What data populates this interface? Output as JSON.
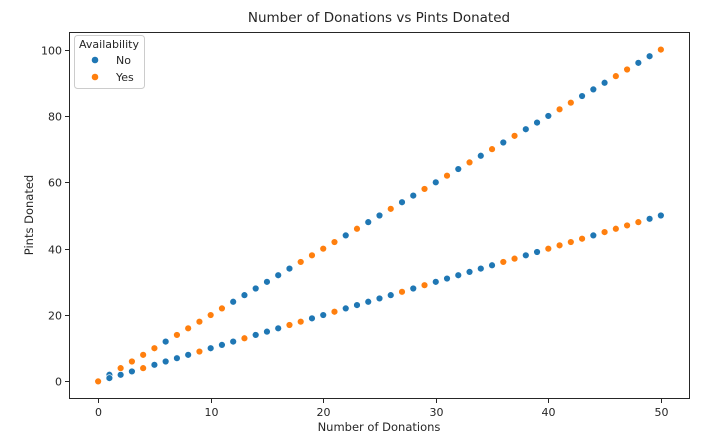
{
  "chart_data": {
    "type": "scatter",
    "title": "Number of Donations vs Pints Donated",
    "xlabel": "Number of Donations",
    "ylabel": "Pints Donated",
    "xlim": [
      -2.5,
      52.5
    ],
    "ylim": [
      -5,
      105
    ],
    "xticks": [
      0,
      10,
      20,
      30,
      40,
      50
    ],
    "yticks": [
      0,
      20,
      40,
      60,
      80,
      100
    ],
    "grid": false,
    "legend": {
      "title": "Availability",
      "position": "top-left"
    },
    "series": [
      {
        "name": "No",
        "color": "#1f77b4",
        "points": [
          [
            1,
            2
          ],
          [
            1,
            1
          ],
          [
            2,
            2
          ],
          [
            3,
            3
          ],
          [
            5,
            5
          ],
          [
            6,
            6
          ],
          [
            6,
            12
          ],
          [
            7,
            7
          ],
          [
            8,
            8
          ],
          [
            10,
            10
          ],
          [
            11,
            11
          ],
          [
            12,
            12
          ],
          [
            12,
            24
          ],
          [
            13,
            26
          ],
          [
            14,
            28
          ],
          [
            14,
            14
          ],
          [
            15,
            30
          ],
          [
            15,
            15
          ],
          [
            16,
            32
          ],
          [
            16,
            16
          ],
          [
            17,
            34
          ],
          [
            19,
            19
          ],
          [
            20,
            20
          ],
          [
            22,
            44
          ],
          [
            22,
            22
          ],
          [
            23,
            23
          ],
          [
            24,
            48
          ],
          [
            24,
            24
          ],
          [
            25,
            50
          ],
          [
            25,
            25
          ],
          [
            26,
            26
          ],
          [
            27,
            54
          ],
          [
            28,
            56
          ],
          [
            28,
            28
          ],
          [
            30,
            60
          ],
          [
            30,
            30
          ],
          [
            31,
            31
          ],
          [
            32,
            64
          ],
          [
            32,
            32
          ],
          [
            33,
            33
          ],
          [
            34,
            68
          ],
          [
            34,
            34
          ],
          [
            35,
            35
          ],
          [
            36,
            72
          ],
          [
            38,
            76
          ],
          [
            38,
            38
          ],
          [
            39,
            78
          ],
          [
            39,
            39
          ],
          [
            40,
            80
          ],
          [
            43,
            86
          ],
          [
            44,
            88
          ],
          [
            44,
            44
          ],
          [
            45,
            90
          ],
          [
            48,
            96
          ],
          [
            49,
            98
          ],
          [
            49,
            49
          ],
          [
            50,
            50
          ]
        ]
      },
      {
        "name": "Yes",
        "color": "#ff7f0e",
        "points": [
          [
            0,
            0
          ],
          [
            2,
            4
          ],
          [
            3,
            6
          ],
          [
            4,
            8
          ],
          [
            4,
            4
          ],
          [
            5,
            10
          ],
          [
            7,
            14
          ],
          [
            8,
            16
          ],
          [
            9,
            18
          ],
          [
            9,
            9
          ],
          [
            10,
            20
          ],
          [
            11,
            22
          ],
          [
            13,
            13
          ],
          [
            17,
            17
          ],
          [
            18,
            36
          ],
          [
            18,
            18
          ],
          [
            19,
            38
          ],
          [
            20,
            40
          ],
          [
            21,
            42
          ],
          [
            21,
            21
          ],
          [
            23,
            46
          ],
          [
            26,
            52
          ],
          [
            27,
            27
          ],
          [
            29,
            58
          ],
          [
            29,
            29
          ],
          [
            31,
            62
          ],
          [
            33,
            66
          ],
          [
            35,
            70
          ],
          [
            36,
            36
          ],
          [
            37,
            74
          ],
          [
            37,
            37
          ],
          [
            40,
            40
          ],
          [
            41,
            82
          ],
          [
            41,
            41
          ],
          [
            42,
            84
          ],
          [
            42,
            42
          ],
          [
            43,
            43
          ],
          [
            45,
            45
          ],
          [
            46,
            92
          ],
          [
            46,
            46
          ],
          [
            47,
            94
          ],
          [
            47,
            47
          ],
          [
            48,
            48
          ],
          [
            50,
            100
          ]
        ]
      }
    ]
  }
}
